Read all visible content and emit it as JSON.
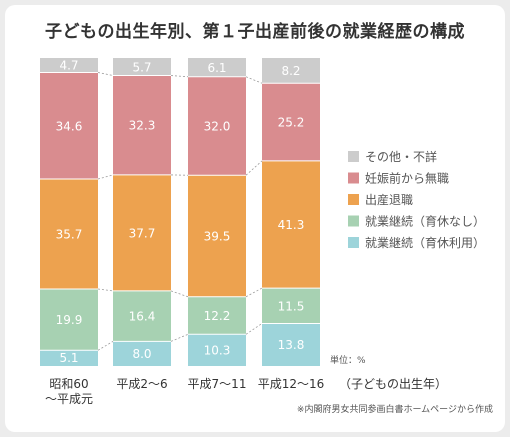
{
  "title": "子どもの出生年別、第１子出産前後の就業経歴の構成",
  "unit_note": "単位：%",
  "category_axis_note": "（子どもの出生年）",
  "source": "※内閣府男女共同参画白書ホームページから作成",
  "chart_data": {
    "type": "bar",
    "stacked": true,
    "percent": true,
    "title": "子どもの出生年別、第１子出産前後の就業経歴の構成",
    "categories": [
      [
        "昭和60",
        "～平成元"
      ],
      [
        "平成2～6"
      ],
      [
        "平成7～11"
      ],
      [
        "平成12～16"
      ]
    ],
    "ylim": [
      0,
      100
    ],
    "grid": false,
    "legend_position": "right",
    "series": [
      {
        "name": "就業継続（育休利用）",
        "color": "#9dd4da",
        "values": [
          5.1,
          8.0,
          10.3,
          13.8
        ]
      },
      {
        "name": "就業継続（育休なし）",
        "color": "#a7d1b2",
        "values": [
          19.9,
          16.4,
          12.2,
          11.5
        ]
      },
      {
        "name": "出産退職",
        "color": "#eda24f",
        "values": [
          35.7,
          37.7,
          39.5,
          41.3
        ]
      },
      {
        "name": "妊娠前から無職",
        "color": "#d98c8f",
        "values": [
          34.6,
          32.3,
          32.0,
          25.2
        ]
      },
      {
        "name": "その他・不詳",
        "color": "#cccccc",
        "values": [
          4.7,
          5.7,
          6.1,
          8.2
        ]
      }
    ],
    "legend_order": [
      4,
      3,
      2,
      1,
      0
    ],
    "value_labels": true
  }
}
